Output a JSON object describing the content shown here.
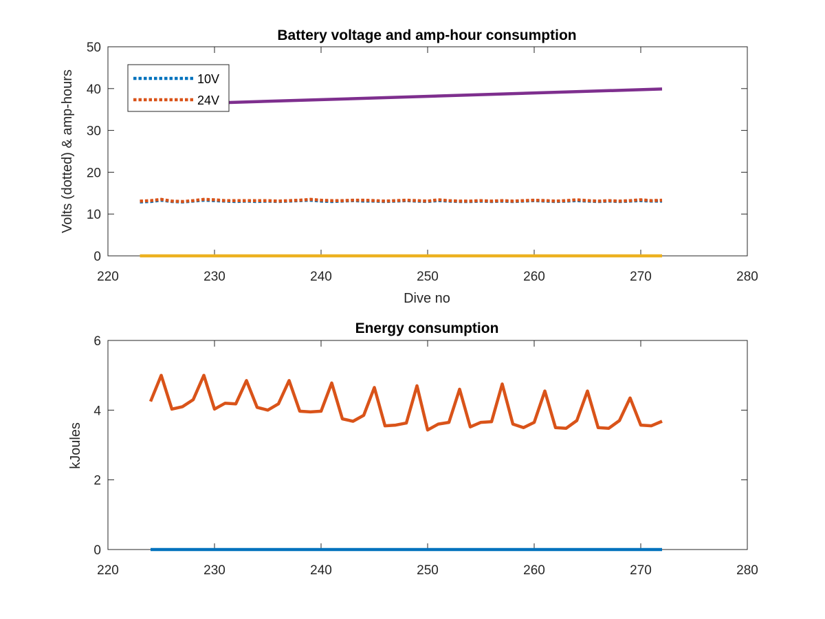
{
  "chart_data": [
    {
      "type": "line",
      "title": "Battery voltage and amp-hour consumption",
      "xlabel": "Dive no",
      "ylabel": "Volts (dotted) & amp-hours",
      "xlim": [
        220,
        280
      ],
      "ylim": [
        0,
        50
      ],
      "xticks": [
        220,
        230,
        240,
        250,
        260,
        270,
        280
      ],
      "yticks": [
        0,
        10,
        20,
        30,
        40,
        50
      ],
      "grid": false,
      "legend": {
        "position": "top-left",
        "entries": [
          "10V",
          "24V"
        ]
      },
      "series": [
        {
          "name": "10V",
          "color": "#0072BD",
          "style": "dotted",
          "x": [
            223,
            224,
            225,
            226,
            227,
            228,
            229,
            230,
            231,
            232,
            233,
            234,
            235,
            236,
            237,
            238,
            239,
            240,
            241,
            242,
            243,
            244,
            245,
            246,
            247,
            248,
            249,
            250,
            251,
            252,
            253,
            254,
            255,
            256,
            257,
            258,
            259,
            260,
            261,
            262,
            263,
            264,
            265,
            266,
            267,
            268,
            269,
            270,
            271,
            272
          ],
          "values": [
            12.9,
            13.0,
            13.3,
            13.0,
            12.9,
            13.1,
            13.3,
            13.2,
            13.1,
            13.0,
            13.1,
            13.0,
            13.1,
            13.0,
            13.1,
            13.2,
            13.3,
            13.1,
            13.0,
            13.1,
            13.2,
            13.1,
            13.1,
            13.0,
            13.1,
            13.2,
            13.1,
            13.0,
            13.2,
            13.1,
            13.0,
            13.0,
            13.1,
            13.0,
            13.1,
            13.0,
            13.1,
            13.2,
            13.1,
            13.0,
            13.1,
            13.2,
            13.1,
            13.0,
            13.1,
            13.0,
            13.1,
            13.2,
            13.1,
            13.1
          ]
        },
        {
          "name": "24V",
          "color": "#D95319",
          "style": "dotted",
          "x": [
            223,
            224,
            225,
            226,
            227,
            228,
            229,
            230,
            231,
            232,
            233,
            234,
            235,
            236,
            237,
            238,
            239,
            240,
            241,
            242,
            243,
            244,
            245,
            246,
            247,
            248,
            249,
            250,
            251,
            252,
            253,
            254,
            255,
            256,
            257,
            258,
            259,
            260,
            261,
            262,
            263,
            264,
            265,
            266,
            267,
            268,
            269,
            270,
            271,
            272
          ],
          "values": [
            13.1,
            13.2,
            13.5,
            13.1,
            13.0,
            13.2,
            13.5,
            13.4,
            13.2,
            13.2,
            13.2,
            13.2,
            13.2,
            13.1,
            13.2,
            13.3,
            13.5,
            13.3,
            13.2,
            13.2,
            13.3,
            13.3,
            13.2,
            13.1,
            13.2,
            13.3,
            13.2,
            13.1,
            13.4,
            13.2,
            13.1,
            13.1,
            13.2,
            13.1,
            13.2,
            13.1,
            13.2,
            13.3,
            13.2,
            13.1,
            13.2,
            13.4,
            13.2,
            13.1,
            13.2,
            13.1,
            13.2,
            13.4,
            13.2,
            13.3
          ]
        },
        {
          "color": "#7E2F8E",
          "style": "solid",
          "x": [
            223,
            272
          ],
          "values": [
            36.0,
            39.9
          ]
        },
        {
          "color": "#EDB120",
          "style": "solid",
          "x": [
            223,
            272
          ],
          "values": [
            0,
            0
          ]
        }
      ]
    },
    {
      "type": "line",
      "title": "Energy consumption",
      "xlabel": "",
      "ylabel": "kJoules",
      "xlim": [
        220,
        280
      ],
      "ylim": [
        0,
        6
      ],
      "xticks": [
        220,
        230,
        240,
        250,
        260,
        270,
        280
      ],
      "yticks": [
        0,
        2,
        4,
        6
      ],
      "grid": false,
      "series": [
        {
          "color": "#D95319",
          "style": "solid",
          "x": [
            224,
            225,
            226,
            227,
            228,
            229,
            230,
            231,
            232,
            233,
            234,
            235,
            236,
            237,
            238,
            239,
            240,
            241,
            242,
            243,
            244,
            245,
            246,
            247,
            248,
            249,
            250,
            251,
            252,
            253,
            254,
            255,
            256,
            257,
            258,
            259,
            260,
            261,
            262,
            263,
            264,
            265,
            266,
            267,
            268,
            269,
            270,
            271,
            272
          ],
          "values": [
            4.25,
            5.0,
            4.03,
            4.1,
            4.3,
            5.0,
            4.03,
            4.2,
            4.18,
            4.85,
            4.08,
            4.0,
            4.18,
            4.85,
            3.97,
            3.95,
            3.97,
            4.78,
            3.75,
            3.68,
            3.85,
            4.65,
            3.55,
            3.57,
            3.63,
            4.7,
            3.43,
            3.6,
            3.65,
            4.6,
            3.52,
            3.65,
            3.67,
            4.75,
            3.6,
            3.5,
            3.65,
            4.55,
            3.5,
            3.48,
            3.7,
            4.55,
            3.5,
            3.48,
            3.7,
            4.35,
            3.57,
            3.55,
            3.68
          ]
        },
        {
          "color": "#0072BD",
          "style": "solid",
          "x": [
            224,
            272
          ],
          "values": [
            0,
            0
          ]
        }
      ]
    }
  ]
}
